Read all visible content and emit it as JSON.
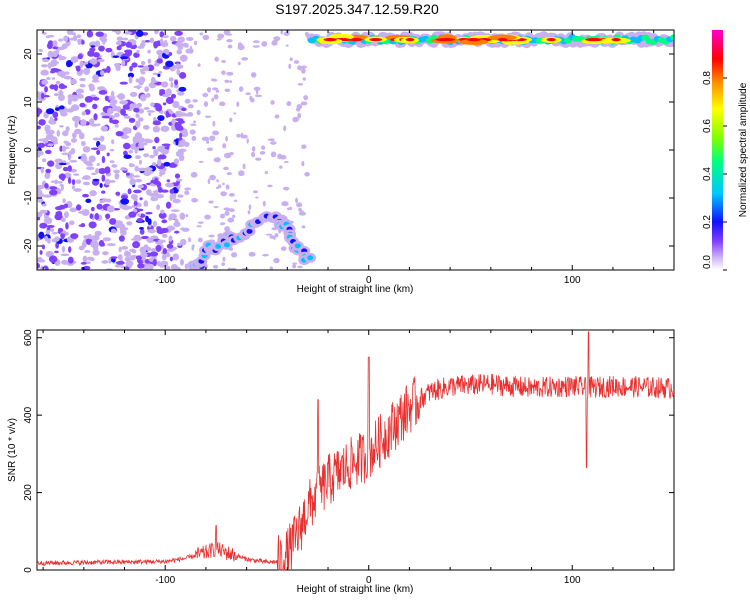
{
  "title": "S197.2025.347.12.59.R20",
  "chart_data": [
    {
      "type": "heatmap",
      "name": "spectrogram",
      "xlabel": "Height of straight line (km)",
      "ylabel": "Frequency (Hz)",
      "xlim": [
        -163,
        150
      ],
      "ylim": [
        -25,
        25
      ],
      "xticks": [
        -100,
        0,
        100
      ],
      "yticks": [
        -20,
        -10,
        0,
        10,
        20
      ],
      "colorbar": {
        "label": "Normalized spectral amplitude",
        "range": [
          0,
          1
        ],
        "ticks": [
          0.0,
          0.2,
          0.4,
          0.6,
          0.8
        ],
        "tick_labels": [
          "0.0",
          "0.2",
          "0.4",
          "0.6",
          "0.8"
        ],
        "colormap": [
          "#ffffff",
          "#c8b0f0",
          "#8040ff",
          "#1010ff",
          "#00c0ff",
          "#00ff80",
          "#80ff00",
          "#ffff00",
          "#ff8000",
          "#ff0000",
          "#ff00c0"
        ]
      },
      "features": [
        {
          "label": "broadband noise",
          "x_range": [
            -163,
            -90
          ],
          "freq_range": [
            -25,
            25
          ],
          "amplitude": 0.2
        },
        {
          "label": "sparse noise",
          "x_range": [
            -90,
            -30
          ],
          "freq_range": [
            -25,
            25
          ],
          "amplitude": 0.1
        },
        {
          "label": "rising track",
          "points": [
            [
              -85,
              -25
            ],
            [
              -80,
              -21
            ],
            [
              -75,
              -20
            ],
            [
              -65,
              -18
            ],
            [
              -55,
              -15
            ],
            [
              -45,
              -13
            ],
            [
              -40,
              -17
            ],
            [
              -35,
              -20
            ],
            [
              -28,
              -24
            ]
          ],
          "amplitude": 0.5
        },
        {
          "label": "top band",
          "x_range": [
            -28,
            150
          ],
          "freq": 23,
          "amplitude": 0.9
        }
      ]
    },
    {
      "type": "line",
      "name": "snr",
      "xlabel": "Height of straight line (km)",
      "ylabel": "SNR (10 * v/v)",
      "xlim": [
        -163,
        150
      ],
      "ylim": [
        0,
        620
      ],
      "xticks": [
        -100,
        0,
        100
      ],
      "yticks": [
        0,
        200,
        400,
        600
      ],
      "color": "#e83030",
      "envelope": {
        "x": [
          -163,
          -130,
          -100,
          -90,
          -80,
          -75,
          -70,
          -60,
          -50,
          -43,
          -40,
          -35,
          -30,
          -20,
          -10,
          0,
          10,
          20,
          30,
          40,
          60,
          80,
          100,
          107,
          120,
          150
        ],
        "y": [
          18,
          20,
          22,
          30,
          45,
          55,
          45,
          28,
          20,
          22,
          40,
          90,
          160,
          230,
          270,
          300,
          360,
          420,
          460,
          475,
          480,
          470,
          475,
          470,
          475,
          470
        ]
      },
      "spikes": [
        {
          "x": -75,
          "y": 115
        },
        {
          "x": -25,
          "y": 440
        },
        {
          "x": 0,
          "y": 550
        },
        {
          "x": 108,
          "y": 615
        },
        {
          "x": 107,
          "y": 265
        }
      ]
    }
  ]
}
